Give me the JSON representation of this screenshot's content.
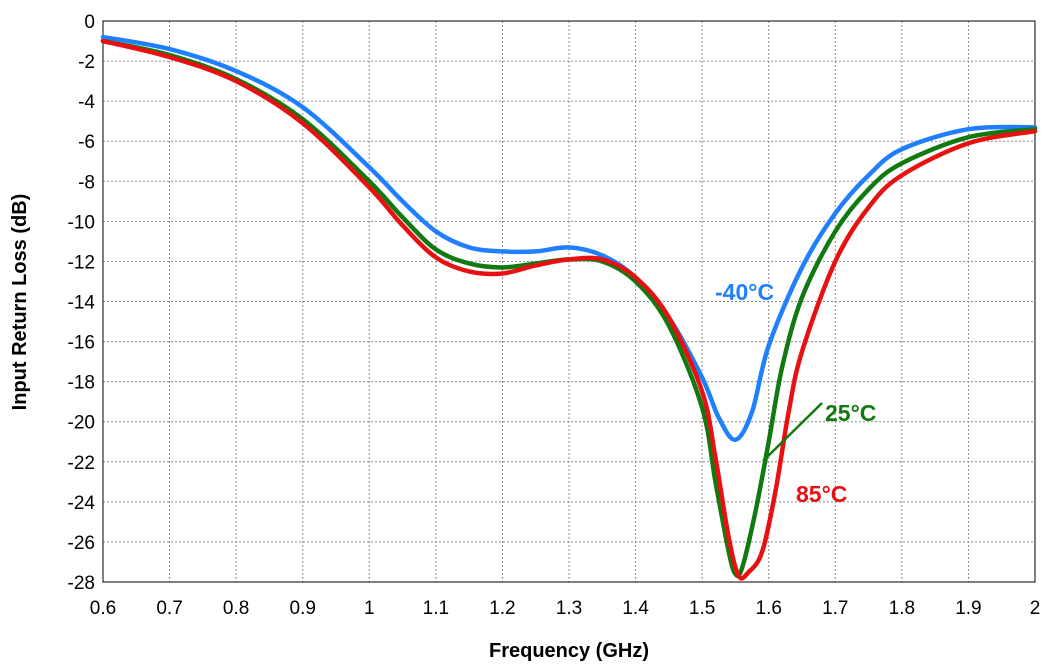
{
  "chart_data": {
    "type": "line",
    "xlabel": "Frequency (GHz)",
    "ylabel": "Input Return Loss (dB)",
    "xlim": [
      0.6,
      2.0
    ],
    "ylim": [
      -28,
      0
    ],
    "xticks": [
      0.6,
      0.7,
      0.8,
      0.9,
      1.0,
      1.1,
      1.2,
      1.3,
      1.4,
      1.5,
      1.6,
      1.7,
      1.8,
      1.9,
      2.0
    ],
    "xtick_labels": [
      "0.6",
      "0.7",
      "0.8",
      "0.9",
      "1",
      "1.1",
      "1.2",
      "1.3",
      "1.4",
      "1.5",
      "1.6",
      "1.7",
      "1.8",
      "1.9",
      "2"
    ],
    "yticks": [
      0,
      -2,
      -4,
      -6,
      -8,
      -10,
      -12,
      -14,
      -16,
      -18,
      -20,
      -22,
      -24,
      -26,
      -28
    ],
    "ytick_labels": [
      "0",
      "-2",
      "-4",
      "-6",
      "-8",
      "-10",
      "-12",
      "-14",
      "-16",
      "-18",
      "-20",
      "-22",
      "-24",
      "-26",
      "-28"
    ],
    "grid": true,
    "legend": "inline",
    "series": [
      {
        "name": "-40°C",
        "color": "#1f7fff",
        "x": [
          0.6,
          0.7,
          0.8,
          0.9,
          1.0,
          1.05,
          1.1,
          1.15,
          1.2,
          1.25,
          1.3,
          1.35,
          1.4,
          1.45,
          1.5,
          1.525,
          1.55,
          1.575,
          1.6,
          1.65,
          1.7,
          1.75,
          1.8,
          1.9,
          2.0
        ],
        "y": [
          -0.8,
          -1.4,
          -2.5,
          -4.3,
          -7.3,
          -9.0,
          -10.5,
          -11.3,
          -11.5,
          -11.5,
          -11.3,
          -11.7,
          -12.8,
          -14.8,
          -17.8,
          -19.8,
          -20.9,
          -19.5,
          -16.2,
          -12.3,
          -9.6,
          -7.7,
          -6.4,
          -5.4,
          -5.3
        ]
      },
      {
        "name": "25°C",
        "color": "#107a10",
        "x": [
          0.6,
          0.7,
          0.8,
          0.9,
          1.0,
          1.05,
          1.1,
          1.15,
          1.2,
          1.25,
          1.3,
          1.35,
          1.4,
          1.45,
          1.5,
          1.52,
          1.54,
          1.55,
          1.56,
          1.58,
          1.6,
          1.62,
          1.65,
          1.7,
          1.75,
          1.8,
          1.9,
          2.0
        ],
        "y": [
          -1.0,
          -1.7,
          -2.9,
          -4.9,
          -8.0,
          -9.8,
          -11.4,
          -12.1,
          -12.3,
          -12.1,
          -11.9,
          -12.0,
          -13.0,
          -15.2,
          -19.3,
          -23.0,
          -26.5,
          -27.6,
          -27.3,
          -24.5,
          -21.0,
          -17.3,
          -13.8,
          -10.5,
          -8.4,
          -7.1,
          -5.8,
          -5.4
        ]
      },
      {
        "name": "85°C",
        "color": "#e81010",
        "x": [
          0.6,
          0.7,
          0.8,
          0.9,
          1.0,
          1.05,
          1.1,
          1.15,
          1.2,
          1.25,
          1.3,
          1.35,
          1.4,
          1.45,
          1.5,
          1.52,
          1.54,
          1.555,
          1.57,
          1.59,
          1.61,
          1.63,
          1.65,
          1.7,
          1.75,
          1.8,
          1.9,
          2.0
        ],
        "y": [
          -1.0,
          -1.8,
          -3.0,
          -5.1,
          -8.3,
          -10.2,
          -11.8,
          -12.5,
          -12.6,
          -12.2,
          -11.9,
          -11.9,
          -12.8,
          -14.8,
          -18.5,
          -21.8,
          -25.8,
          -27.7,
          -27.5,
          -26.5,
          -23.5,
          -19.5,
          -16.5,
          -12.0,
          -9.3,
          -7.7,
          -6.1,
          -5.5
        ]
      }
    ]
  }
}
